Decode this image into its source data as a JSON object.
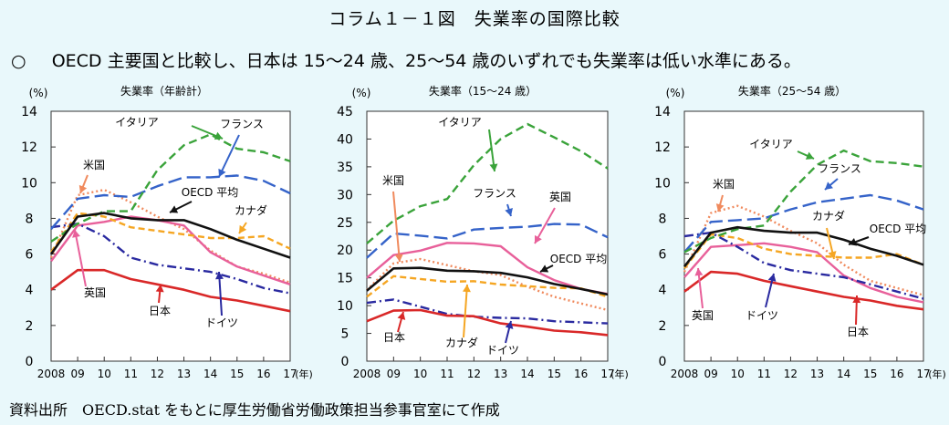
{
  "header": {
    "title": "コラム１－１図　失業率の国際比較",
    "lead_marker": "○",
    "lead": "OECD 主要国と比較し、日本は 15～24 歳、25～54 歳のいずれでも失業率は低い水準にある。"
  },
  "footer": {
    "source": "資料出所　OECD.stat をもとに厚生労働省労働政策担当参事官室にて作成"
  },
  "colors": {
    "italy": "#3aa33a",
    "france": "#3563c9",
    "usa": "#f08a5d",
    "uk": "#e8609a",
    "oecd": "#111111",
    "canada": "#f5a623",
    "germany": "#2a2aa0",
    "japan": "#d92828"
  },
  "chart_data": [
    {
      "type": "line",
      "title": "失業率（年齢計）",
      "unit": "(%)",
      "year_suffix": "(年)",
      "x": [
        "2008",
        "09",
        "10",
        "11",
        "12",
        "13",
        "14",
        "15",
        "16",
        "17"
      ],
      "ylim": [
        0,
        14
      ],
      "yticks": [
        0,
        2,
        4,
        6,
        8,
        10,
        12,
        14
      ],
      "series": [
        {
          "name": "イタリア",
          "key": "italy",
          "values": [
            6.7,
            7.7,
            8.4,
            8.4,
            10.7,
            12.1,
            12.7,
            11.9,
            11.7,
            11.2
          ]
        },
        {
          "name": "フランス",
          "key": "france",
          "values": [
            7.4,
            9.1,
            9.3,
            9.2,
            9.8,
            10.3,
            10.3,
            10.4,
            10.1,
            9.4
          ]
        },
        {
          "name": "米国",
          "key": "usa",
          "values": [
            5.8,
            9.3,
            9.6,
            8.9,
            8.1,
            7.4,
            6.2,
            5.3,
            4.9,
            4.4
          ]
        },
        {
          "name": "英国",
          "key": "uk",
          "values": [
            5.6,
            7.6,
            7.8,
            8.1,
            7.9,
            7.6,
            6.1,
            5.3,
            4.8,
            4.3
          ]
        },
        {
          "name": "OECD 平均",
          "key": "oecd",
          "values": [
            6.0,
            8.1,
            8.3,
            8.0,
            7.9,
            7.9,
            7.4,
            6.8,
            6.3,
            5.8
          ]
        },
        {
          "name": "カナダ",
          "key": "canada",
          "values": [
            6.1,
            8.3,
            8.1,
            7.5,
            7.3,
            7.1,
            6.9,
            6.9,
            7.0,
            6.3
          ]
        },
        {
          "name": "ドイツ",
          "key": "germany",
          "values": [
            7.5,
            7.7,
            7.0,
            5.8,
            5.4,
            5.2,
            5.0,
            4.6,
            4.1,
            3.8
          ]
        },
        {
          "name": "日本",
          "key": "japan",
          "values": [
            4.0,
            5.1,
            5.1,
            4.6,
            4.3,
            4.0,
            3.6,
            3.4,
            3.1,
            2.8
          ]
        }
      ],
      "annotations": [
        "イタリア",
        "フランス",
        "米国",
        "OECD 平均",
        "カナダ",
        "英国",
        "日本",
        "ドイツ"
      ]
    },
    {
      "type": "line",
      "title": "失業率（15～24 歳）",
      "unit": "(%)",
      "year_suffix": "(年)",
      "x": [
        "2008",
        "09",
        "10",
        "11",
        "12",
        "13",
        "14",
        "15",
        "16",
        "17"
      ],
      "ylim": [
        0,
        45
      ],
      "yticks": [
        0,
        5,
        10,
        15,
        20,
        25,
        30,
        35,
        40,
        45
      ],
      "series": [
        {
          "name": "イタリア",
          "key": "italy",
          "values": [
            21.2,
            25.3,
            27.9,
            29.2,
            35.3,
            40.0,
            42.7,
            40.3,
            37.8,
            34.7
          ]
        },
        {
          "name": "フランス",
          "key": "france",
          "values": [
            18.6,
            23.0,
            22.6,
            22.1,
            23.7,
            24.0,
            24.2,
            24.7,
            24.6,
            22.3
          ]
        },
        {
          "name": "英国",
          "key": "uk",
          "values": [
            15.0,
            19.1,
            19.9,
            21.3,
            21.2,
            20.7,
            16.9,
            14.6,
            13.0,
            12.1
          ]
        },
        {
          "name": "米国",
          "key": "usa",
          "values": [
            12.8,
            17.6,
            18.4,
            17.3,
            16.2,
            15.5,
            13.4,
            11.6,
            10.4,
            9.2
          ]
        },
        {
          "name": "OECD 平均",
          "key": "oecd",
          "values": [
            12.7,
            16.7,
            16.8,
            16.3,
            16.2,
            15.9,
            15.1,
            13.9,
            13.0,
            12.0
          ]
        },
        {
          "name": "カナダ",
          "key": "canada",
          "values": [
            11.6,
            15.3,
            14.8,
            14.3,
            14.4,
            13.8,
            13.5,
            13.2,
            13.1,
            11.6
          ]
        },
        {
          "name": "ドイツ",
          "key": "germany",
          "values": [
            10.5,
            11.1,
            9.8,
            8.5,
            8.0,
            7.8,
            7.7,
            7.2,
            7.0,
            6.8
          ]
        },
        {
          "name": "日本",
          "key": "japan",
          "values": [
            7.2,
            9.1,
            9.2,
            8.2,
            8.1,
            6.8,
            6.2,
            5.5,
            5.2,
            4.7
          ]
        }
      ],
      "annotations": [
        "イタリア",
        "米国",
        "フランス",
        "英国",
        "OECD 平均",
        "日本",
        "カナダ",
        "ドイツ"
      ]
    },
    {
      "type": "line",
      "title": "失業率（25～54 歳）",
      "unit": "(%)",
      "year_suffix": "(年)",
      "x": [
        "2008",
        "09",
        "10",
        "11",
        "12",
        "13",
        "14",
        "15",
        "16",
        "17"
      ],
      "ylim": [
        0,
        14
      ],
      "yticks": [
        0,
        2,
        4,
        6,
        8,
        10,
        12,
        14
      ],
      "series": [
        {
          "name": "イタリア",
          "key": "italy",
          "values": [
            6.1,
            6.9,
            7.4,
            7.6,
            9.5,
            11.0,
            11.8,
            11.2,
            11.1,
            10.9
          ]
        },
        {
          "name": "フランス",
          "key": "france",
          "values": [
            6.1,
            7.8,
            7.9,
            8.0,
            8.5,
            8.9,
            9.1,
            9.3,
            9.0,
            8.5
          ]
        },
        {
          "name": "米国",
          "key": "usa",
          "values": [
            5.0,
            8.3,
            8.7,
            8.1,
            7.3,
            6.6,
            5.4,
            4.5,
            4.1,
            3.7
          ]
        },
        {
          "name": "OECD 平均",
          "key": "oecd",
          "values": [
            5.3,
            7.2,
            7.5,
            7.3,
            7.2,
            7.2,
            6.8,
            6.3,
            5.9,
            5.4
          ]
        },
        {
          "name": "カナダ",
          "key": "canada",
          "values": [
            5.2,
            7.1,
            6.9,
            6.3,
            6.0,
            5.9,
            5.8,
            5.8,
            6.0,
            5.4
          ]
        },
        {
          "name": "英国",
          "key": "uk",
          "values": [
            4.7,
            6.4,
            6.5,
            6.6,
            6.4,
            6.1,
            4.8,
            4.1,
            3.6,
            3.3
          ]
        },
        {
          "name": "ドイツ",
          "key": "germany",
          "values": [
            7.0,
            7.2,
            6.4,
            5.5,
            5.1,
            4.9,
            4.7,
            4.3,
            3.9,
            3.5
          ]
        },
        {
          "name": "日本",
          "key": "japan",
          "values": [
            3.9,
            5.0,
            4.9,
            4.5,
            4.2,
            3.9,
            3.6,
            3.4,
            3.1,
            2.9
          ]
        }
      ],
      "annotations": [
        "イタリア",
        "フランス",
        "米国",
        "カナダ",
        "OECD 平均",
        "英国",
        "ドイツ",
        "日本"
      ]
    }
  ]
}
